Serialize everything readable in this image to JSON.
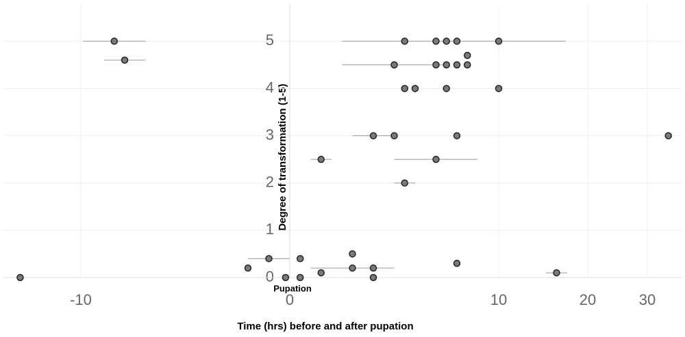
{
  "chart_data": {
    "type": "scatter",
    "x_label": "Time (hrs) before and after pupation",
    "y_label": "Degree of transformation (1-5)",
    "annotation": "Pupation",
    "x": [
      -8.4,
      -7.9,
      5.5,
      7,
      7.5,
      8,
      10,
      8.5,
      5,
      7,
      7.5,
      8,
      8.5,
      5.5,
      6,
      7.5,
      10,
      4,
      5,
      8,
      33.5,
      1.5,
      7,
      5.5,
      3,
      -1,
      0.5,
      8,
      -2,
      3,
      4,
      1.5,
      16.5,
      -12.9,
      -0.2,
      0.5,
      4
    ],
    "y": [
      5,
      4.6,
      5,
      5,
      5,
      5,
      5,
      4.7,
      4.5,
      4.5,
      4.5,
      4.5,
      4.5,
      4,
      4,
      4,
      4,
      3,
      3,
      3,
      3,
      2.5,
      2.5,
      2,
      0.5,
      0.4,
      0.4,
      0.3,
      0.2,
      0.2,
      0.2,
      0.1,
      0.1,
      0,
      0,
      0,
      0
    ],
    "xerr": [
      1.5,
      1.0,
      null,
      null,
      null,
      null,
      7.5,
      null,
      2.5,
      null,
      null,
      null,
      null,
      null,
      null,
      null,
      null,
      1,
      null,
      null,
      null,
      0.5,
      2,
      0.5,
      null,
      1,
      null,
      null,
      null,
      2,
      null,
      null,
      1.2,
      null,
      null,
      null,
      null
    ],
    "color": "#7a7a7a",
    "xlim": [
      -13.7,
      35.7
    ],
    "xticks": [
      -10,
      0,
      10,
      20,
      30
    ],
    "ylim": [
      0,
      5.8
    ],
    "yticks": [
      0,
      1,
      2,
      3,
      4,
      5
    ],
    "grid": true
  }
}
